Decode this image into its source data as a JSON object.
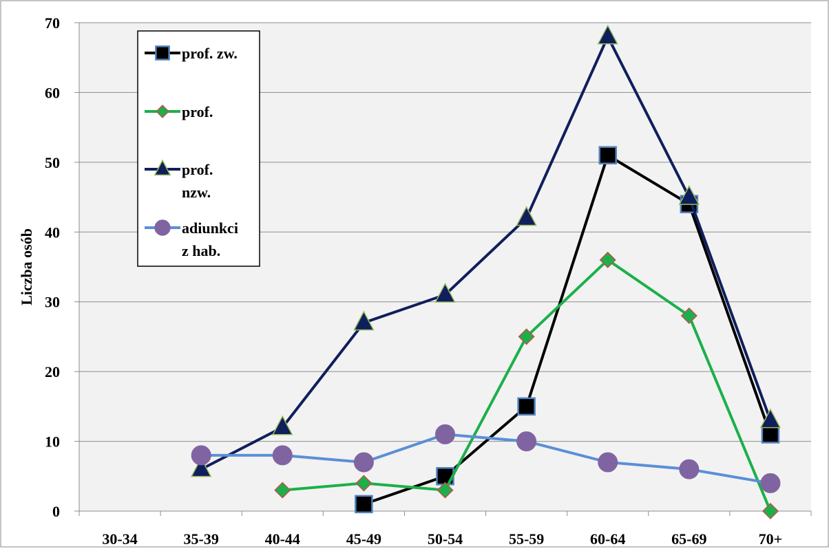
{
  "chart_data": {
    "type": "line",
    "categories": [
      "30-34",
      "35-39",
      "40-44",
      "45-49",
      "50-54",
      "55-59",
      "60-64",
      "65-69",
      "70+"
    ],
    "ylabel": "Liczba osób",
    "ylim": [
      0,
      70
    ],
    "yticks": [
      0,
      10,
      20,
      30,
      40,
      50,
      60,
      70
    ],
    "grid": true,
    "legend_position": "top-left",
    "series": [
      {
        "name": "prof. zw.",
        "legend_lines": [
          "prof. zw."
        ],
        "color": "#000000",
        "marker": "square",
        "marker_fill": "#000000",
        "marker_stroke": "#4f81bd",
        "values": [
          null,
          null,
          null,
          1,
          5,
          15,
          51,
          44,
          11
        ]
      },
      {
        "name": "prof.",
        "legend_lines": [
          "prof."
        ],
        "color": "#1bb04a",
        "marker": "diamond",
        "marker_fill": "#1bb04a",
        "marker_stroke": "#c0504d",
        "values": [
          null,
          null,
          3,
          4,
          3,
          25,
          36,
          28,
          0
        ]
      },
      {
        "name": "prof. nzw.",
        "legend_lines": [
          "prof.",
          "nzw."
        ],
        "color": "#0f1f5c",
        "marker": "triangle",
        "marker_fill": "#0f1f5c",
        "marker_stroke": "#9bbb59",
        "values": [
          null,
          6,
          12,
          27,
          31,
          42,
          68,
          45,
          13
        ]
      },
      {
        "name": "adiunkci z hab.",
        "legend_lines": [
          "adiunkci",
          "z hab."
        ],
        "color": "#5b8fd6",
        "marker": "circle",
        "marker_fill": "#8064a2",
        "marker_stroke": "#8064a2",
        "values": [
          null,
          8,
          8,
          7,
          11,
          10,
          7,
          6,
          4
        ]
      }
    ]
  }
}
